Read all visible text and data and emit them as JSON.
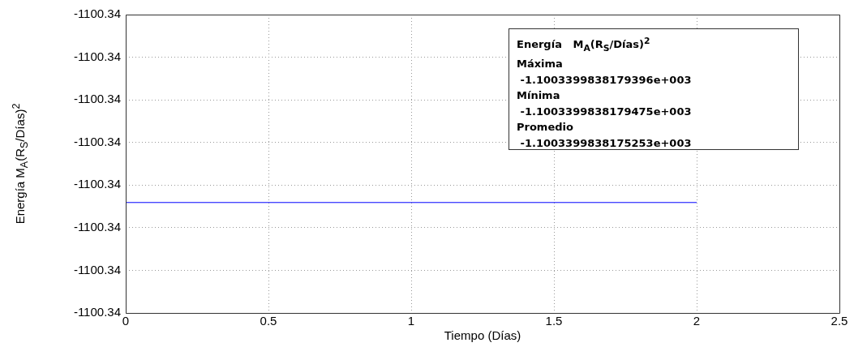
{
  "chart_data": {
    "type": "line",
    "xlabel": "Tiempo (Días)",
    "ylabel": "Energía M$_{A}$(R$_{S}$/Días)$^{2}$",
    "series": [
      {
        "color": "#0000ff",
        "x": [
          0,
          2
        ],
        "values": [
          -1100.33998381794,
          -1100.33998381794
        ]
      }
    ],
    "xlim": [
      0,
      2.5
    ],
    "xticks": [
      0,
      0.5,
      1,
      1.5,
      2,
      2.5
    ],
    "ylim": [
      -1100.339983817966,
      -1100.339983817896
    ],
    "yticks": [
      {
        "value": -1100.339983817966,
        "label": "-1100.34"
      },
      {
        "value": -1100.339983817956,
        "label": "-1100.34"
      },
      {
        "value": -1100.339983817946,
        "label": "-1100.34"
      },
      {
        "value": -1100.339983817936,
        "label": "-1100.34"
      },
      {
        "value": -1100.339983817926,
        "label": "-1100.34"
      },
      {
        "value": -1100.339983817916,
        "label": "-1100.34"
      },
      {
        "value": -1100.339983817906,
        "label": "-1100.34"
      },
      {
        "value": -1100.339983817896,
        "label": "-1100.34"
      }
    ],
    "grid": true,
    "line_style": "solid",
    "marker": "none",
    "annotations": [
      "Energía   M$_{A}$(R$_{S}$/Días)$^{2}$",
      "Máxima",
      " -1.1003399838179396e+003",
      "Mínima",
      " -1.1003399838179475e+003",
      "Promedio",
      " -1.1003399838175253e+003"
    ]
  }
}
